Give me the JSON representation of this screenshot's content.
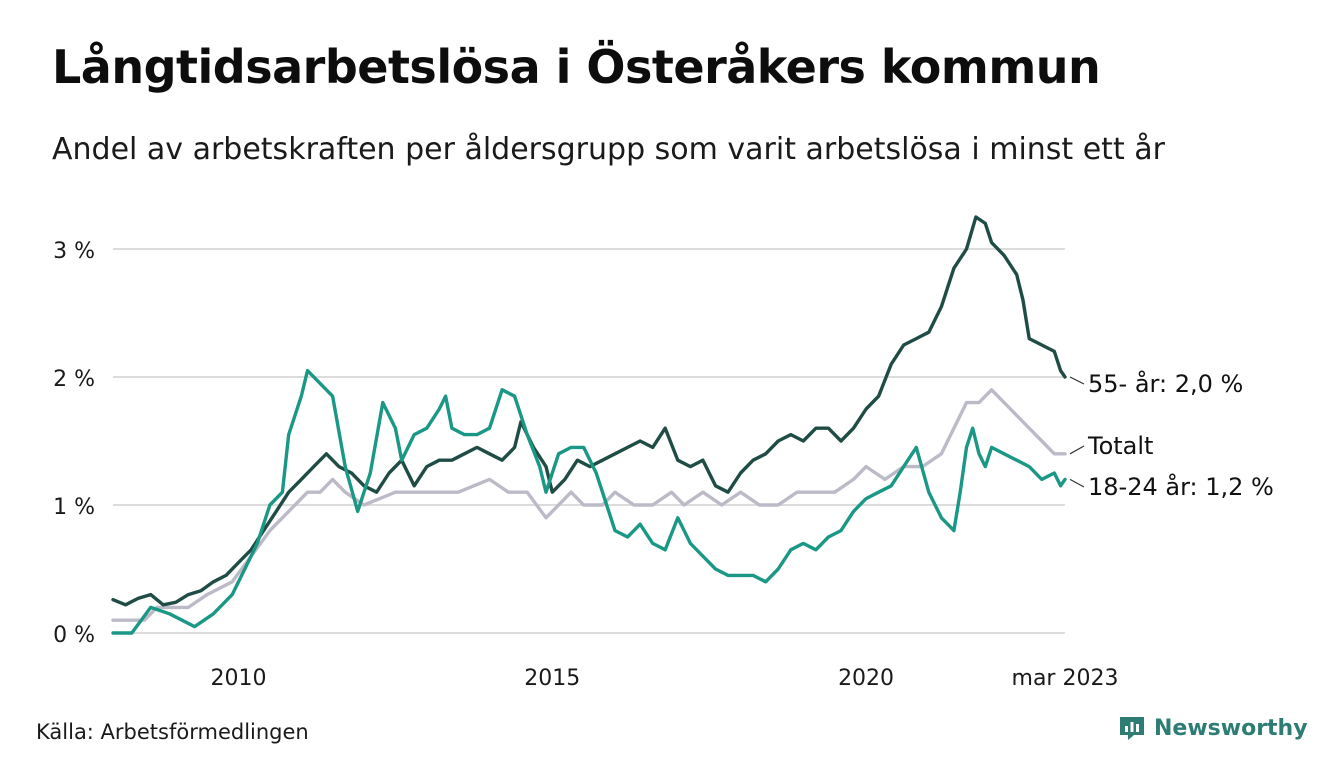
{
  "title": "Långtidsarbetslösa i Österåkers kommun",
  "subtitle": "Andel av arbetskraften per åldersgrupp som varit arbetslösa i minst ett år",
  "source": "Källa: Arbetsförmedlingen",
  "brand": "Newsworthy",
  "colors": {
    "s55": "#1f4d45",
    "total": "#bdbac8",
    "s1824": "#1a9885",
    "grid": "#dcdcdc",
    "brand": "#2e7d74"
  },
  "chart_data": {
    "type": "line",
    "ylim": [
      0,
      3.3
    ],
    "yticks": [
      0,
      1,
      2,
      3
    ],
    "ytick_labels": [
      "0 %",
      "1 %",
      "2 %",
      "3 %"
    ],
    "xlim": [
      2008.0,
      2023.17
    ],
    "xticks": [
      2010,
      2015,
      2020,
      2023.17
    ],
    "xtick_labels": [
      "2010",
      "2015",
      "2020",
      "mar 2023"
    ],
    "grid": true,
    "series": [
      {
        "key": "total",
        "name": "Totalt",
        "label": "Totalt",
        "points": [
          [
            2008.0,
            0.1
          ],
          [
            2008.5,
            0.1
          ],
          [
            2008.7,
            0.2
          ],
          [
            2009.2,
            0.2
          ],
          [
            2009.5,
            0.3
          ],
          [
            2009.9,
            0.4
          ],
          [
            2010.2,
            0.6
          ],
          [
            2010.5,
            0.8
          ],
          [
            2010.7,
            0.9
          ],
          [
            2010.9,
            1.0
          ],
          [
            2011.1,
            1.1
          ],
          [
            2011.3,
            1.1
          ],
          [
            2011.5,
            1.2
          ],
          [
            2011.7,
            1.1
          ],
          [
            2012.0,
            1.0
          ],
          [
            2012.5,
            1.1
          ],
          [
            2013.0,
            1.1
          ],
          [
            2013.5,
            1.1
          ],
          [
            2014.0,
            1.2
          ],
          [
            2014.3,
            1.1
          ],
          [
            2014.6,
            1.1
          ],
          [
            2014.9,
            0.9
          ],
          [
            2015.1,
            1.0
          ],
          [
            2015.3,
            1.1
          ],
          [
            2015.5,
            1.0
          ],
          [
            2015.8,
            1.0
          ],
          [
            2016.0,
            1.1
          ],
          [
            2016.3,
            1.0
          ],
          [
            2016.6,
            1.0
          ],
          [
            2016.9,
            1.1
          ],
          [
            2017.1,
            1.0
          ],
          [
            2017.4,
            1.1
          ],
          [
            2017.7,
            1.0
          ],
          [
            2018.0,
            1.1
          ],
          [
            2018.3,
            1.0
          ],
          [
            2018.6,
            1.0
          ],
          [
            2018.9,
            1.1
          ],
          [
            2019.2,
            1.1
          ],
          [
            2019.5,
            1.1
          ],
          [
            2019.8,
            1.2
          ],
          [
            2020.0,
            1.3
          ],
          [
            2020.3,
            1.2
          ],
          [
            2020.6,
            1.3
          ],
          [
            2020.9,
            1.3
          ],
          [
            2021.2,
            1.4
          ],
          [
            2021.4,
            1.6
          ],
          [
            2021.6,
            1.8
          ],
          [
            2021.8,
            1.8
          ],
          [
            2022.0,
            1.9
          ],
          [
            2022.2,
            1.8
          ],
          [
            2022.4,
            1.7
          ],
          [
            2022.6,
            1.6
          ],
          [
            2022.8,
            1.5
          ],
          [
            2023.0,
            1.4
          ],
          [
            2023.17,
            1.4
          ]
        ]
      },
      {
        "key": "s55",
        "name": "55- år",
        "label": "55- år: 2,0 %",
        "points": [
          [
            2008.0,
            0.26
          ],
          [
            2008.2,
            0.22
          ],
          [
            2008.4,
            0.27
          ],
          [
            2008.6,
            0.3
          ],
          [
            2008.8,
            0.22
          ],
          [
            2009.0,
            0.24
          ],
          [
            2009.2,
            0.3
          ],
          [
            2009.4,
            0.33
          ],
          [
            2009.6,
            0.4
          ],
          [
            2009.8,
            0.45
          ],
          [
            2010.0,
            0.55
          ],
          [
            2010.2,
            0.65
          ],
          [
            2010.4,
            0.8
          ],
          [
            2010.6,
            0.95
          ],
          [
            2010.8,
            1.1
          ],
          [
            2011.0,
            1.2
          ],
          [
            2011.2,
            1.3
          ],
          [
            2011.4,
            1.4
          ],
          [
            2011.6,
            1.3
          ],
          [
            2011.8,
            1.25
          ],
          [
            2012.0,
            1.15
          ],
          [
            2012.2,
            1.1
          ],
          [
            2012.4,
            1.25
          ],
          [
            2012.6,
            1.35
          ],
          [
            2012.8,
            1.15
          ],
          [
            2013.0,
            1.3
          ],
          [
            2013.2,
            1.35
          ],
          [
            2013.4,
            1.35
          ],
          [
            2013.6,
            1.4
          ],
          [
            2013.8,
            1.45
          ],
          [
            2014.0,
            1.4
          ],
          [
            2014.2,
            1.35
          ],
          [
            2014.4,
            1.45
          ],
          [
            2014.5,
            1.65
          ],
          [
            2014.7,
            1.45
          ],
          [
            2014.9,
            1.3
          ],
          [
            2015.0,
            1.1
          ],
          [
            2015.2,
            1.2
          ],
          [
            2015.4,
            1.35
          ],
          [
            2015.6,
            1.3
          ],
          [
            2015.8,
            1.35
          ],
          [
            2016.0,
            1.4
          ],
          [
            2016.2,
            1.45
          ],
          [
            2016.4,
            1.5
          ],
          [
            2016.6,
            1.45
          ],
          [
            2016.8,
            1.6
          ],
          [
            2017.0,
            1.35
          ],
          [
            2017.2,
            1.3
          ],
          [
            2017.4,
            1.35
          ],
          [
            2017.6,
            1.15
          ],
          [
            2017.8,
            1.1
          ],
          [
            2018.0,
            1.25
          ],
          [
            2018.2,
            1.35
          ],
          [
            2018.4,
            1.4
          ],
          [
            2018.6,
            1.5
          ],
          [
            2018.8,
            1.55
          ],
          [
            2019.0,
            1.5
          ],
          [
            2019.2,
            1.6
          ],
          [
            2019.4,
            1.6
          ],
          [
            2019.6,
            1.5
          ],
          [
            2019.8,
            1.6
          ],
          [
            2020.0,
            1.75
          ],
          [
            2020.2,
            1.85
          ],
          [
            2020.4,
            2.1
          ],
          [
            2020.6,
            2.25
          ],
          [
            2020.8,
            2.3
          ],
          [
            2021.0,
            2.35
          ],
          [
            2021.2,
            2.55
          ],
          [
            2021.4,
            2.85
          ],
          [
            2021.6,
            3.0
          ],
          [
            2021.75,
            3.25
          ],
          [
            2021.9,
            3.2
          ],
          [
            2022.0,
            3.05
          ],
          [
            2022.2,
            2.95
          ],
          [
            2022.4,
            2.8
          ],
          [
            2022.5,
            2.6
          ],
          [
            2022.6,
            2.3
          ],
          [
            2022.8,
            2.25
          ],
          [
            2023.0,
            2.2
          ],
          [
            2023.1,
            2.05
          ],
          [
            2023.17,
            2.0
          ]
        ]
      },
      {
        "key": "s1824",
        "name": "18-24 år",
        "label": "18-24 år: 1,2 %",
        "points": [
          [
            2008.0,
            0.0
          ],
          [
            2008.3,
            0.0
          ],
          [
            2008.6,
            0.2
          ],
          [
            2008.9,
            0.15
          ],
          [
            2009.1,
            0.1
          ],
          [
            2009.3,
            0.05
          ],
          [
            2009.6,
            0.15
          ],
          [
            2009.9,
            0.3
          ],
          [
            2010.1,
            0.5
          ],
          [
            2010.3,
            0.7
          ],
          [
            2010.5,
            1.0
          ],
          [
            2010.7,
            1.1
          ],
          [
            2010.8,
            1.55
          ],
          [
            2010.9,
            1.7
          ],
          [
            2011.0,
            1.85
          ],
          [
            2011.1,
            2.05
          ],
          [
            2011.3,
            1.95
          ],
          [
            2011.5,
            1.85
          ],
          [
            2011.7,
            1.3
          ],
          [
            2011.9,
            0.95
          ],
          [
            2012.1,
            1.25
          ],
          [
            2012.3,
            1.8
          ],
          [
            2012.5,
            1.6
          ],
          [
            2012.6,
            1.35
          ],
          [
            2012.8,
            1.55
          ],
          [
            2013.0,
            1.6
          ],
          [
            2013.2,
            1.75
          ],
          [
            2013.3,
            1.85
          ],
          [
            2013.4,
            1.6
          ],
          [
            2013.6,
            1.55
          ],
          [
            2013.8,
            1.55
          ],
          [
            2014.0,
            1.6
          ],
          [
            2014.2,
            1.9
          ],
          [
            2014.4,
            1.85
          ],
          [
            2014.6,
            1.55
          ],
          [
            2014.8,
            1.3
          ],
          [
            2014.9,
            1.1
          ],
          [
            2015.1,
            1.4
          ],
          [
            2015.3,
            1.45
          ],
          [
            2015.5,
            1.45
          ],
          [
            2015.7,
            1.25
          ],
          [
            2015.8,
            1.1
          ],
          [
            2016.0,
            0.8
          ],
          [
            2016.2,
            0.75
          ],
          [
            2016.4,
            0.85
          ],
          [
            2016.6,
            0.7
          ],
          [
            2016.8,
            0.65
          ],
          [
            2017.0,
            0.9
          ],
          [
            2017.2,
            0.7
          ],
          [
            2017.4,
            0.6
          ],
          [
            2017.6,
            0.5
          ],
          [
            2017.8,
            0.45
          ],
          [
            2018.0,
            0.45
          ],
          [
            2018.2,
            0.45
          ],
          [
            2018.4,
            0.4
          ],
          [
            2018.6,
            0.5
          ],
          [
            2018.8,
            0.65
          ],
          [
            2019.0,
            0.7
          ],
          [
            2019.2,
            0.65
          ],
          [
            2019.4,
            0.75
          ],
          [
            2019.6,
            0.8
          ],
          [
            2019.8,
            0.95
          ],
          [
            2020.0,
            1.05
          ],
          [
            2020.2,
            1.1
          ],
          [
            2020.4,
            1.15
          ],
          [
            2020.6,
            1.3
          ],
          [
            2020.8,
            1.45
          ],
          [
            2021.0,
            1.1
          ],
          [
            2021.2,
            0.9
          ],
          [
            2021.4,
            0.8
          ],
          [
            2021.5,
            1.1
          ],
          [
            2021.6,
            1.45
          ],
          [
            2021.7,
            1.6
          ],
          [
            2021.8,
            1.4
          ],
          [
            2021.9,
            1.3
          ],
          [
            2022.0,
            1.45
          ],
          [
            2022.2,
            1.4
          ],
          [
            2022.4,
            1.35
          ],
          [
            2022.6,
            1.3
          ],
          [
            2022.8,
            1.2
          ],
          [
            2023.0,
            1.25
          ],
          [
            2023.1,
            1.15
          ],
          [
            2023.17,
            1.2
          ]
        ]
      }
    ]
  }
}
